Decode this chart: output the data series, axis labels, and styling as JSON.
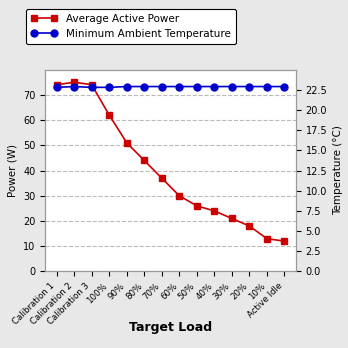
{
  "categories": [
    "Calibration 1",
    "Calibration 2",
    "Calibration 3",
    "100%",
    "90%",
    "80%",
    "70%",
    "60%",
    "50%",
    "40%",
    "30%",
    "20%",
    "10%",
    "Active Idle"
  ],
  "power_values": [
    74,
    75,
    74,
    62,
    51,
    44,
    37,
    30,
    26,
    24,
    21,
    18,
    13,
    12
  ],
  "temp_values": [
    22.8,
    22.9,
    22.8,
    22.8,
    22.9,
    22.9,
    22.9,
    22.9,
    22.9,
    22.9,
    22.9,
    22.9,
    22.9,
    22.9
  ],
  "ylabel_left": "Power (W)",
  "ylabel_right": "Temperature (°C)",
  "xlabel": "Target Load",
  "legend_power": "Average Active Power",
  "legend_temp": "Minimum Ambient Temperature",
  "ylim_left": [
    0,
    80
  ],
  "ylim_right": [
    0,
    25
  ],
  "yticks_left": [
    0,
    10,
    20,
    30,
    40,
    50,
    60,
    70
  ],
  "yticks_right": [
    0.0,
    2.5,
    5.0,
    7.5,
    10.0,
    12.5,
    15.0,
    17.5,
    20.0,
    22.5
  ],
  "power_color": "#cc0000",
  "temp_color": "#0000cc",
  "fig_bg_color": "#e8e8e8",
  "plot_bg_color": "#ffffff",
  "grid_color": "#bbbbbb"
}
